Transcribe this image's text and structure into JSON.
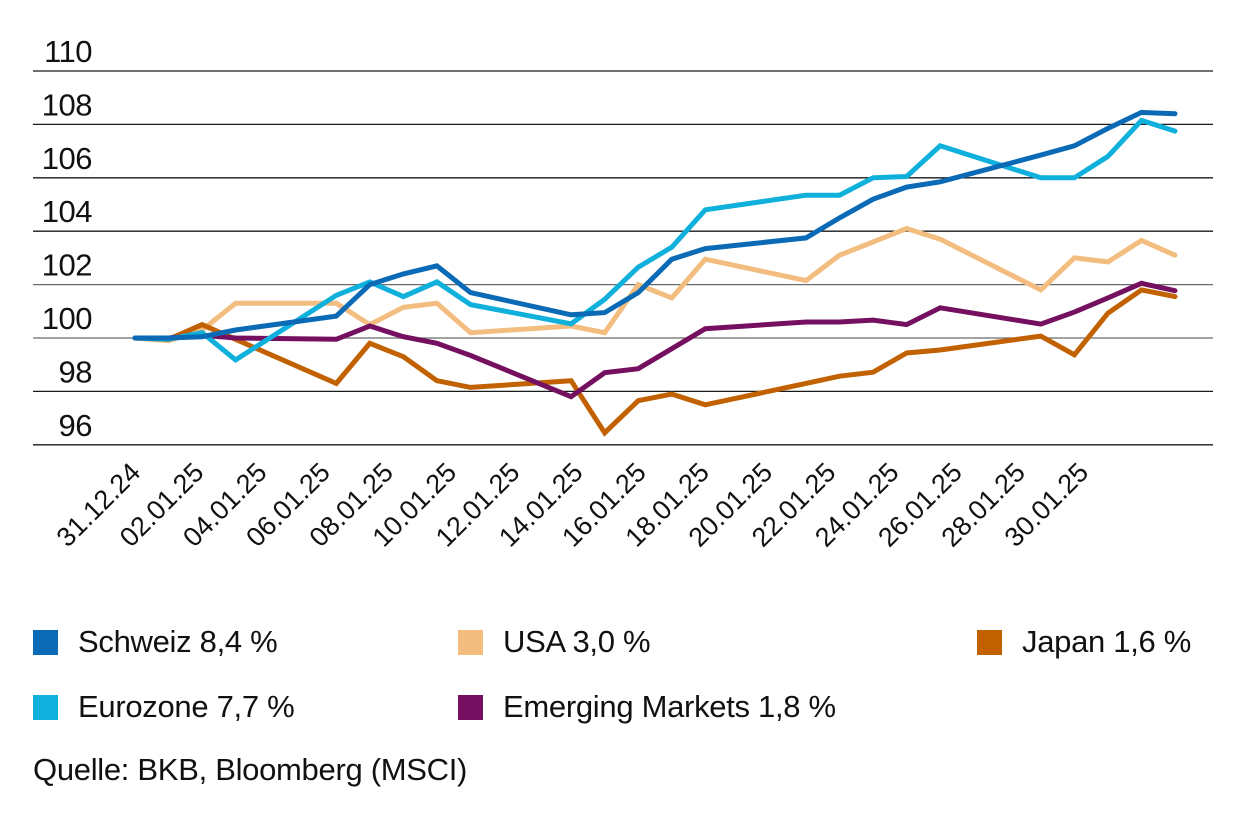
{
  "chart_data": {
    "type": "line",
    "title": "",
    "xlabel": "",
    "ylabel": "",
    "ylim": [
      96,
      110
    ],
    "yticks": [
      96,
      98,
      100,
      102,
      104,
      106,
      108,
      110
    ],
    "ytick_labels": [
      "96",
      "98",
      "100",
      "102",
      "104",
      "106",
      "108",
      "110"
    ],
    "grid": "horizontal",
    "xtick_labels": [
      "31.12.24",
      "02.01.25",
      "04.01.25",
      "06.01.25",
      "08.01.25",
      "10.01.25",
      "12.01.25",
      "14.01.25",
      "16.01.25",
      "18.01.25",
      "20.01.25",
      "22.01.25",
      "24.01.25",
      "26.01.25",
      "28.01.25",
      "30.01.25"
    ],
    "x": [
      "31.12.24",
      "01.01.25",
      "02.01.25",
      "03.01.25",
      "06.01.25",
      "07.01.25",
      "08.01.25",
      "09.01.25",
      "10.01.25",
      "13.01.25",
      "14.01.25",
      "15.01.25",
      "16.01.25",
      "17.01.25",
      "20.01.25",
      "21.01.25",
      "22.01.25",
      "23.01.25",
      "24.01.25",
      "27.01.25",
      "28.01.25",
      "29.01.25",
      "30.01.25",
      "31.01.25"
    ],
    "x_day_offset": [
      0,
      1,
      2,
      3,
      6,
      7,
      8,
      9,
      10,
      13,
      14,
      15,
      16,
      17,
      20,
      21,
      22,
      23,
      24,
      27,
      28,
      29,
      30,
      31
    ],
    "x_range_days": [
      0,
      31
    ],
    "series": [
      {
        "name": "USA",
        "legend_label": "USA 3,0 %",
        "color": "#f2bd7e",
        "values": [
          100,
          99.9,
          100.3,
          101.3,
          101.3,
          100.5,
          101.15,
          101.3,
          100.2,
          100.45,
          100.2,
          102.0,
          101.5,
          102.95,
          102.15,
          103.1,
          103.6,
          104.1,
          103.7,
          101.8,
          103.0,
          102.85,
          103.65,
          103.1
        ]
      },
      {
        "name": "Japan",
        "legend_label": "Japan 1,6 %",
        "color": "#c26100",
        "values": [
          100,
          99.95,
          100.5,
          99.95,
          98.3,
          99.8,
          99.3,
          98.4,
          98.15,
          98.4,
          96.45,
          97.65,
          97.9,
          97.5,
          98.3,
          98.57,
          98.72,
          99.44,
          99.55,
          100.07,
          99.37,
          100.93,
          101.8,
          101.55
        ]
      },
      {
        "name": "Emerging Markets",
        "legend_label": "Emerging Markets 1,8 %",
        "color": "#751060",
        "values": [
          100,
          100,
          100.1,
          100.0,
          99.95,
          100.45,
          100.05,
          99.8,
          99.35,
          97.8,
          98.7,
          98.85,
          99.6,
          100.35,
          100.6,
          100.6,
          100.67,
          100.5,
          101.13,
          100.52,
          100.97,
          101.5,
          102.05,
          101.77
        ]
      },
      {
        "name": "Eurozone",
        "legend_label": "Eurozone 7,7 %",
        "color": "#0fb0dc",
        "values": [
          100,
          99.95,
          100.2,
          99.18,
          101.6,
          102.1,
          101.55,
          102.1,
          101.25,
          100.53,
          101.45,
          102.65,
          103.4,
          104.8,
          105.35,
          105.35,
          106.0,
          106.05,
          107.2,
          106.0,
          106.0,
          106.8,
          108.15,
          107.75
        ]
      },
      {
        "name": "Schweiz",
        "legend_label": "Schweiz 8,4 %",
        "color": "#0a6ab5",
        "values": [
          100,
          100,
          100.05,
          100.3,
          100.82,
          102.0,
          102.4,
          102.7,
          101.7,
          100.87,
          100.95,
          101.7,
          102.95,
          103.35,
          103.75,
          104.5,
          105.2,
          105.65,
          105.85,
          106.85,
          107.2,
          107.85,
          108.45,
          108.4
        ]
      }
    ],
    "legend": {
      "placement": "bottom",
      "order": [
        "Schweiz",
        "USA",
        "Japan",
        "Eurozone",
        "Emerging Markets"
      ]
    },
    "source": "Quelle: BKB, Bloomberg (MSCI)"
  }
}
